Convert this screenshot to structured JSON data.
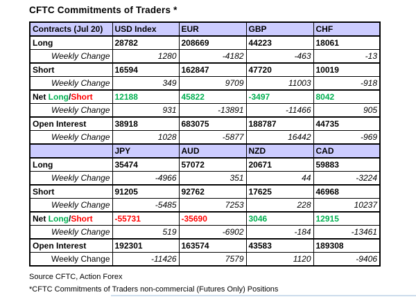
{
  "title": "CFTC Commitments of Traders *",
  "colors": {
    "header_bg": "#ccccff",
    "green": "#00b050",
    "red": "#ff0000"
  },
  "net_label": {
    "prefix": "Net ",
    "long": "Long",
    "slash": "/",
    "short": "Short"
  },
  "sections": [
    {
      "header": [
        "Contracts (Jul 20)",
        "USD Index",
        "EUR",
        "GBP",
        "CHF"
      ],
      "rows": [
        {
          "label": "Long",
          "type": "main",
          "values": [
            "28782",
            "208669",
            "44223",
            "18061"
          ]
        },
        {
          "label": "Weekly Change",
          "type": "wc",
          "values": [
            "1280",
            "-4182",
            "-463",
            "-13"
          ]
        },
        {
          "label": "Short",
          "type": "main",
          "values": [
            "16594",
            "162847",
            "47720",
            "10019"
          ]
        },
        {
          "label": "Weekly Change",
          "type": "wc",
          "values": [
            "349",
            "9709",
            "11003",
            "-918"
          ]
        },
        {
          "label": "Net Long/Short",
          "type": "net",
          "values": [
            "12188",
            "45822",
            "-3497",
            "8042"
          ],
          "value_colors": [
            "green",
            "green",
            "green",
            "green"
          ]
        },
        {
          "label": "Weekly Change",
          "type": "wc",
          "values": [
            "931",
            "-13891",
            "-11466",
            "905"
          ]
        },
        {
          "label": "Open Interest",
          "type": "main",
          "values": [
            "38918",
            "683075",
            "188787",
            "44735"
          ]
        },
        {
          "label": "Weekly Change",
          "type": "wc",
          "values": [
            "1028",
            "-5877",
            "16442",
            "-969"
          ]
        }
      ]
    },
    {
      "header": [
        "",
        "JPY",
        "AUD",
        "NZD",
        "CAD"
      ],
      "rows": [
        {
          "label": "Long",
          "type": "main",
          "values": [
            "35474",
            "57072",
            "20671",
            "59883"
          ]
        },
        {
          "label": "Weekly Change",
          "type": "wc",
          "values": [
            "-4966",
            "351",
            "44",
            "-3224"
          ]
        },
        {
          "label": "Short",
          "type": "main",
          "values": [
            "91205",
            "92762",
            "17625",
            "46968"
          ]
        },
        {
          "label": "Weekly Change",
          "type": "wc",
          "values": [
            "-5485",
            "7253",
            "228",
            "10237"
          ]
        },
        {
          "label": "Net Long/Short",
          "type": "net",
          "values": [
            "-55731",
            "-35690",
            "3046",
            "12915"
          ],
          "value_colors": [
            "red",
            "red",
            "green",
            "green"
          ]
        },
        {
          "label": "Weekly Change",
          "type": "wc",
          "values": [
            "519",
            "-6902",
            "-184",
            "-13461"
          ]
        },
        {
          "label": "Open Interest",
          "type": "main",
          "values": [
            "192301",
            "163574",
            "43583",
            "189308"
          ]
        },
        {
          "label": "Weekly Change",
          "type": "wc",
          "values": [
            "-11426",
            "7579",
            "1120",
            "-9406"
          ],
          "label_italic": false
        }
      ]
    }
  ],
  "footer": {
    "line1": "Source CFTC, Action Forex",
    "line2": "*CFTC Commitments of Traders non-commercial (Futures Only) Positions"
  }
}
